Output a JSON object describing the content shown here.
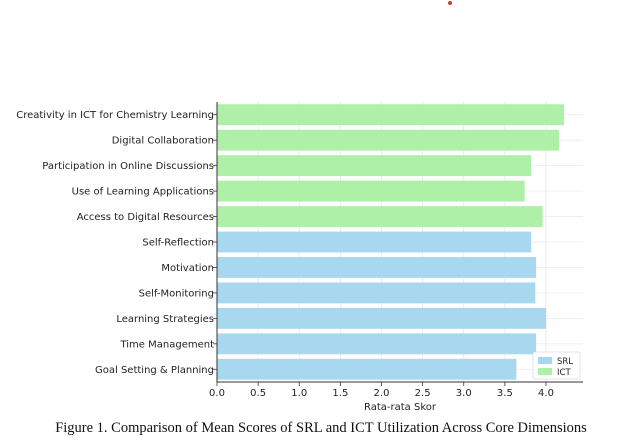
{
  "chart_data": {
    "type": "bar",
    "orientation": "horizontal",
    "categories": [
      "Creativity in ICT for Chemistry Learning",
      "Digital Collaboration",
      "Participation in Online Discussions",
      "Use of Learning Applications",
      "Access to Digital Resources",
      "Self-Reflection",
      "Motivation",
      "Self-Monitoring",
      "Learning Strategies",
      "Time Management",
      "Goal Setting & Planning"
    ],
    "values": [
      4.22,
      4.16,
      3.82,
      3.74,
      3.96,
      3.82,
      3.88,
      3.87,
      4.0,
      3.88,
      3.64
    ],
    "groups": [
      "ICT",
      "ICT",
      "ICT",
      "ICT",
      "ICT",
      "SRL",
      "SRL",
      "SRL",
      "SRL",
      "SRL",
      "SRL"
    ],
    "series": [
      {
        "name": "SRL",
        "color": "#a8d8ef"
      },
      {
        "name": "ICT",
        "color": "#aef0a8"
      }
    ],
    "xlabel": "Rata-rata Skor",
    "ylabel": "",
    "xlim": [
      0,
      4.45
    ],
    "xticks": [
      "0.0",
      "0.5",
      "1.0",
      "1.5",
      "2.0",
      "2.5",
      "3.0",
      "3.5",
      "4.0"
    ],
    "grid": true,
    "legend_position": "bottom-right"
  },
  "caption": "Figure 1. Comparison of Mean Scores of SRL and ICT Utilization Across Core Dimensions"
}
